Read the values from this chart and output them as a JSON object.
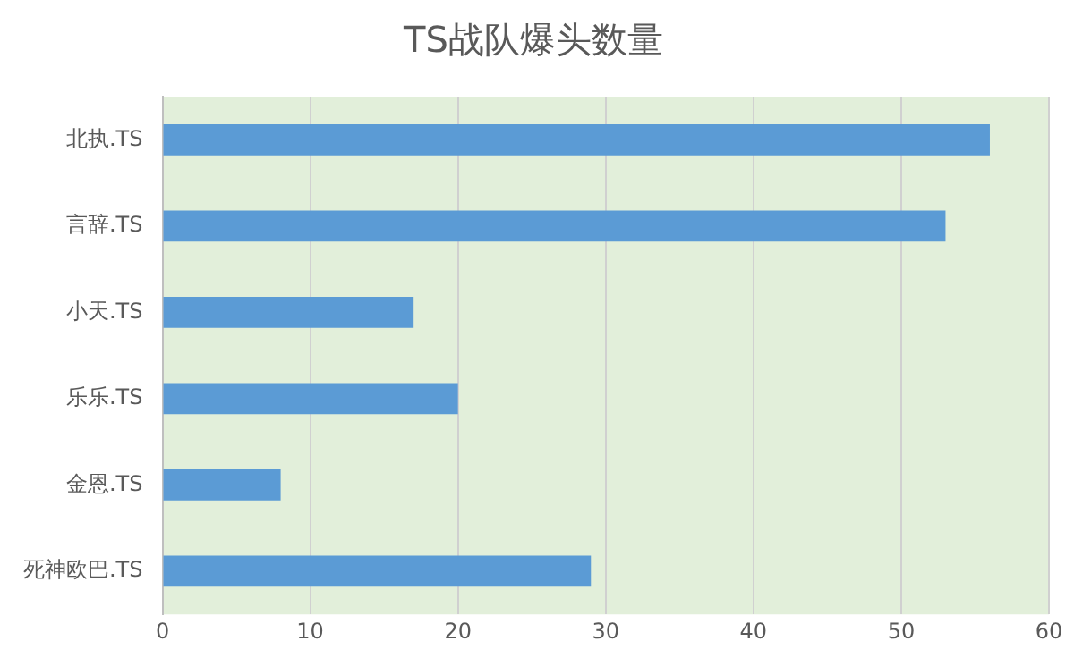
{
  "chart_data": {
    "type": "bar",
    "orientation": "horizontal",
    "title": "TS战队爆头数量",
    "categories": [
      "北执.TS",
      "言辞.TS",
      "小天.TS",
      "乐乐.TS",
      "金恩.TS",
      "死神欧巴.TS"
    ],
    "values": [
      56,
      53,
      17,
      20,
      8,
      29
    ],
    "color": "#5b9bd5",
    "xlim": [
      0,
      60
    ],
    "xticks": [
      0,
      10,
      20,
      30,
      40,
      50,
      60
    ],
    "grid": "x",
    "legend": false
  }
}
